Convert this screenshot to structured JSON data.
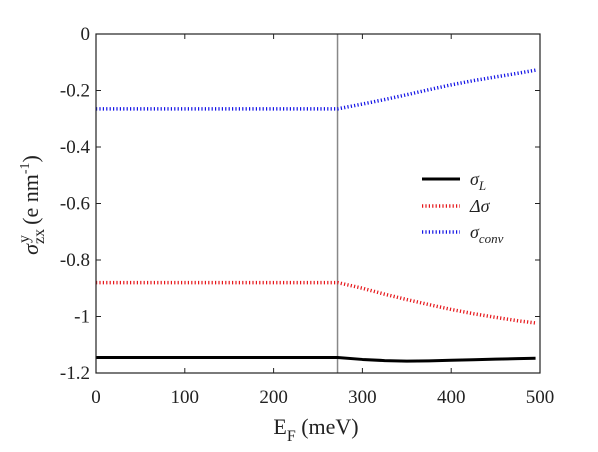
{
  "chart_data": {
    "type": "line",
    "xlabel": {
      "main": "E",
      "sub": "F",
      "unit": " (meV)"
    },
    "ylabel": {
      "symbol": "σ",
      "sup": "y",
      "sub": "zx",
      "unit_open": "(e nm",
      "unit_sup": "-1",
      "unit_close": ")"
    },
    "xlim": [
      0,
      500
    ],
    "ylim": [
      -1.2,
      0
    ],
    "x_ticks": [
      0,
      100,
      200,
      300,
      400,
      500
    ],
    "x_tick_labels": [
      "0",
      "100",
      "200",
      "300",
      "400",
      "500"
    ],
    "y_ticks": [
      0,
      -0.2,
      -0.4,
      -0.6,
      -0.8,
      -1,
      -1.2
    ],
    "y_tick_labels": [
      "0",
      "-0.2",
      "-0.4",
      "-0.6",
      "-0.8",
      "-1",
      "-1.2"
    ],
    "grid": false,
    "legend_position": "right",
    "vertical_line": {
      "x": 272,
      "color": "#888888"
    },
    "series": [
      {
        "name": "σL",
        "legend_base": "σ",
        "legend_sub": "L",
        "color": "#000000",
        "style": "solid",
        "x": [
          0,
          50,
          100,
          150,
          200,
          250,
          272,
          300,
          325,
          350,
          375,
          400,
          425,
          450,
          475,
          495
        ],
        "y": [
          -1.145,
          -1.145,
          -1.145,
          -1.145,
          -1.145,
          -1.145,
          -1.145,
          -1.152,
          -1.156,
          -1.158,
          -1.157,
          -1.155,
          -1.153,
          -1.151,
          -1.149,
          -1.148
        ]
      },
      {
        "name": "Δσ",
        "legend_base": "Δσ",
        "legend_sub": "",
        "color": "#e6161a",
        "style": "dotted",
        "x": [
          0,
          50,
          100,
          150,
          200,
          250,
          272,
          300,
          325,
          350,
          375,
          400,
          425,
          450,
          475,
          495
        ],
        "y": [
          -0.88,
          -0.88,
          -0.88,
          -0.88,
          -0.88,
          -0.88,
          -0.88,
          -0.9,
          -0.921,
          -0.94,
          -0.958,
          -0.975,
          -0.99,
          -1.003,
          -1.015,
          -1.023
        ]
      },
      {
        "name": "σconv",
        "legend_base": "σ",
        "legend_sub": "conv",
        "color": "#1414e6",
        "style": "dotted",
        "x": [
          0,
          50,
          100,
          150,
          200,
          250,
          272,
          300,
          325,
          350,
          375,
          400,
          425,
          450,
          475,
          495
        ],
        "y": [
          -0.265,
          -0.265,
          -0.265,
          -0.265,
          -0.265,
          -0.265,
          -0.265,
          -0.248,
          -0.232,
          -0.215,
          -0.197,
          -0.18,
          -0.165,
          -0.152,
          -0.139,
          -0.128
        ]
      }
    ]
  }
}
